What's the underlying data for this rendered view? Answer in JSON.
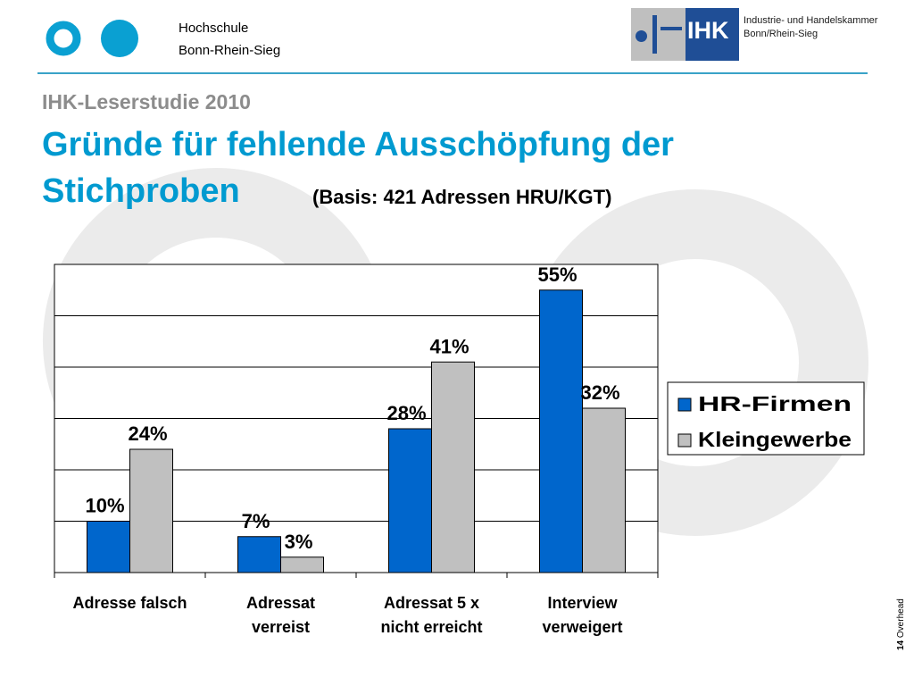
{
  "header": {
    "institution_line1": "Hochschule",
    "institution_line2": "Bonn-Rhein-Sieg",
    "ihk_logo_text": "IHK",
    "ihk_name_line1": "Industrie- und Handelskammer",
    "ihk_name_line2": "Bonn/Rhein-Sieg"
  },
  "slide": {
    "subtitle": "IHK-Leserstudie 2010",
    "title_line1": "Gründe für fehlende Ausschöpfung der",
    "title_line2": "Stichproben",
    "basis": "(Basis: 421 Adressen HRU/KGT)"
  },
  "footer": {
    "page_number": "14",
    "label": "Overhead"
  },
  "colors": {
    "hr_firmen": "#0066cc",
    "kleingewerbe": "#c0c0c0",
    "title_blue": "#009ad0",
    "background_rings": "#ebebeb"
  },
  "chart_data": {
    "type": "bar",
    "categories": [
      [
        "Adresse falsch"
      ],
      [
        "Adressat",
        "verreist"
      ],
      [
        "Adressat 5 x",
        "nicht erreicht"
      ],
      [
        "Interview",
        "verweigert"
      ]
    ],
    "series": [
      {
        "name": "HR-Firmen",
        "values": [
          10,
          7,
          28,
          55
        ],
        "labels": [
          "10%",
          "7%",
          "28%",
          "55%"
        ]
      },
      {
        "name": "Kleingewerbe",
        "values": [
          24,
          3,
          41,
          32
        ],
        "labels": [
          "24%",
          "3%",
          "41%",
          "32%"
        ]
      }
    ],
    "ylim": [
      0,
      60
    ],
    "grid": true,
    "legend_position": "right"
  }
}
